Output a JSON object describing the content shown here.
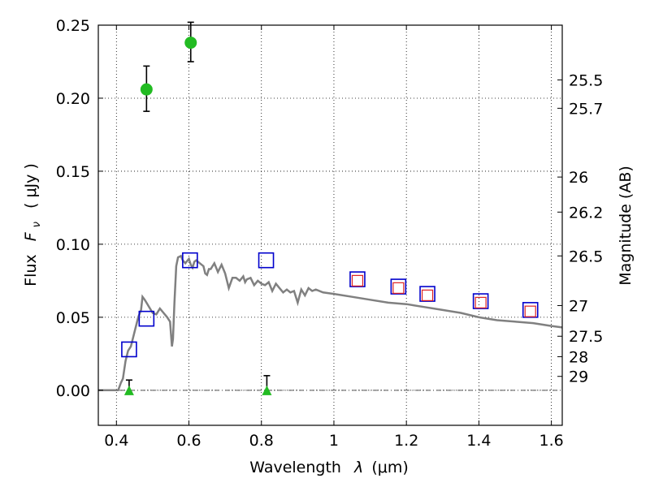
{
  "chart_data": {
    "type": "scatter",
    "title": "",
    "xlabel_text": "Wavelength",
    "xlabel_symbol": "λ",
    "xlabel_unit": "(μm)",
    "ylabel_text": "Flux",
    "ylabel_symbol": "F",
    "ylabel_subscript": "ν",
    "ylabel_unit": "( μJy )",
    "y2label": "Magnitude (AB)",
    "xlim": [
      0.35,
      1.63
    ],
    "ylim": [
      -0.024,
      0.25
    ],
    "grid": true,
    "x_ticks": [
      {
        "value": 0.4,
        "label": "0.4"
      },
      {
        "value": 0.6,
        "label": "0.6"
      },
      {
        "value": 0.8,
        "label": "0.8"
      },
      {
        "value": 1.0,
        "label": "1"
      },
      {
        "value": 1.2,
        "label": "1.2"
      },
      {
        "value": 1.4,
        "label": "1.4"
      },
      {
        "value": 1.6,
        "label": "1.6"
      }
    ],
    "y_ticks": [
      {
        "value": 0.0,
        "label": "0.00"
      },
      {
        "value": 0.05,
        "label": "0.05"
      },
      {
        "value": 0.1,
        "label": "0.10"
      },
      {
        "value": 0.15,
        "label": "0.15"
      },
      {
        "value": 0.2,
        "label": "0.20"
      },
      {
        "value": 0.25,
        "label": "0.25"
      }
    ],
    "y2_ticks": [
      {
        "flux": 0.2125,
        "label": "25.5"
      },
      {
        "flux": 0.1931,
        "label": "25.7"
      },
      {
        "flux": 0.146,
        "label": "26"
      },
      {
        "flux": 0.122,
        "label": "26.2"
      },
      {
        "flux": 0.092,
        "label": "26.5"
      },
      {
        "flux": 0.058,
        "label": "27"
      },
      {
        "flux": 0.037,
        "label": "27.5"
      },
      {
        "flux": 0.023,
        "label": "28"
      },
      {
        "flux": 0.0095,
        "label": "29"
      }
    ],
    "series": [
      {
        "name": "model spectrum",
        "kind": "line",
        "color": "#808080",
        "x": [
          0.35,
          0.405,
          0.412,
          0.418,
          0.425,
          0.432,
          0.44,
          0.45,
          0.46,
          0.468,
          0.472,
          0.478,
          0.483,
          0.49,
          0.5,
          0.51,
          0.52,
          0.53,
          0.54,
          0.548,
          0.553,
          0.556,
          0.56,
          0.565,
          0.57,
          0.578,
          0.583,
          0.59,
          0.6,
          0.605,
          0.61,
          0.615,
          0.62,
          0.63,
          0.64,
          0.645,
          0.65,
          0.655,
          0.66,
          0.67,
          0.68,
          0.69,
          0.7,
          0.71,
          0.72,
          0.73,
          0.74,
          0.75,
          0.755,
          0.76,
          0.77,
          0.78,
          0.79,
          0.8,
          0.81,
          0.82,
          0.83,
          0.84,
          0.85,
          0.86,
          0.87,
          0.88,
          0.89,
          0.9,
          0.91,
          0.92,
          0.93,
          0.94,
          0.95,
          0.97,
          1.0,
          1.05,
          1.1,
          1.15,
          1.2,
          1.25,
          1.3,
          1.35,
          1.4,
          1.45,
          1.5,
          1.55,
          1.6,
          1.63
        ],
        "y": [
          0.0,
          0.0,
          0.005,
          0.008,
          0.02,
          0.027,
          0.03,
          0.04,
          0.05,
          0.055,
          0.064,
          0.062,
          0.06,
          0.057,
          0.053,
          0.052,
          0.056,
          0.053,
          0.05,
          0.047,
          0.03,
          0.035,
          0.06,
          0.085,
          0.091,
          0.092,
          0.089,
          0.087,
          0.09,
          0.086,
          0.084,
          0.088,
          0.089,
          0.087,
          0.085,
          0.08,
          0.079,
          0.083,
          0.083,
          0.087,
          0.081,
          0.086,
          0.08,
          0.07,
          0.077,
          0.077,
          0.075,
          0.078,
          0.074,
          0.076,
          0.077,
          0.072,
          0.075,
          0.073,
          0.072,
          0.074,
          0.068,
          0.073,
          0.07,
          0.067,
          0.069,
          0.067,
          0.068,
          0.06,
          0.069,
          0.065,
          0.07,
          0.068,
          0.069,
          0.067,
          0.066,
          0.064,
          0.062,
          0.06,
          0.059,
          0.057,
          0.055,
          0.053,
          0.05,
          0.048,
          0.047,
          0.046,
          0.044,
          0.043
        ]
      },
      {
        "name": "blue open squares",
        "kind": "square",
        "color": "#0000cc",
        "x": [
          0.435,
          0.483,
          0.603,
          0.813,
          1.065,
          1.178,
          1.258,
          1.405,
          1.542
        ],
        "y": [
          0.028,
          0.049,
          0.089,
          0.089,
          0.076,
          0.071,
          0.066,
          0.061,
          0.055
        ]
      },
      {
        "name": "red inner squares",
        "kind": "square",
        "color": "#dd2222",
        "x": [
          1.065,
          1.178,
          1.258,
          1.405,
          1.542
        ],
        "y": [
          0.075,
          0.07,
          0.065,
          0.06,
          0.054
        ]
      },
      {
        "name": "green detections",
        "kind": "circle",
        "color": "#22bb22",
        "x": [
          0.483,
          0.605
        ],
        "y": [
          0.206,
          0.238
        ],
        "err_low": [
          0.191,
          0.225
        ],
        "err_high": [
          0.222,
          0.252
        ]
      },
      {
        "name": "green limits",
        "kind": "triangle",
        "color": "#22bb22",
        "x": [
          0.435,
          0.815
        ],
        "y": [
          0.0,
          0.0
        ],
        "err_low": [
          0.0,
          0.0
        ],
        "err_high": [
          0.007,
          0.01
        ]
      }
    ],
    "reference_line": {
      "y": 0.0,
      "style": "dash-dot"
    }
  }
}
